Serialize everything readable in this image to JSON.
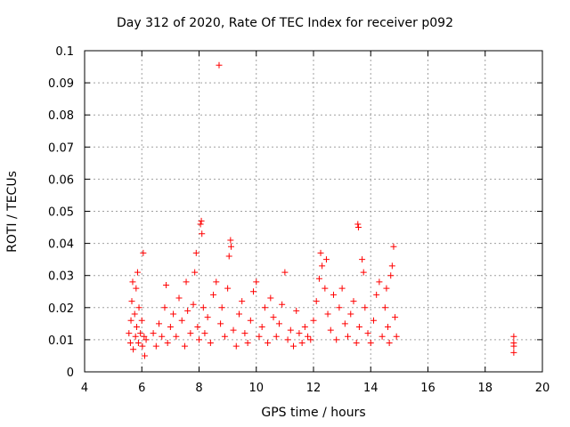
{
  "chart_data": {
    "type": "scatter",
    "title": "Day 312 of 2020, Rate Of TEC Index for receiver p092",
    "xlabel": "GPS time / hours",
    "ylabel": "ROTI / TECUs",
    "xlim": [
      4,
      20
    ],
    "ylim": [
      0,
      0.1
    ],
    "xticks": [
      "4",
      "6",
      "8",
      "10",
      "12",
      "14",
      "16",
      "18",
      "20"
    ],
    "yticks": [
      "0",
      "0.01",
      "0.02",
      "0.03",
      "0.04",
      "0.05",
      "0.06",
      "0.07",
      "0.08",
      "0.09",
      "0.1"
    ],
    "grid": true,
    "marker": "+",
    "color": "#ff0000",
    "series": [
      {
        "points": [
          [
            5.55,
            0.012
          ],
          [
            5.6,
            0.009
          ],
          [
            5.62,
            0.016
          ],
          [
            5.65,
            0.022
          ],
          [
            5.68,
            0.028
          ],
          [
            5.7,
            0.007
          ],
          [
            5.75,
            0.018
          ],
          [
            5.78,
            0.011
          ],
          [
            5.8,
            0.026
          ],
          [
            5.82,
            0.014
          ],
          [
            5.85,
            0.031
          ],
          [
            5.88,
            0.009
          ],
          [
            5.9,
            0.02
          ],
          [
            5.95,
            0.012
          ],
          [
            6.0,
            0.016
          ],
          [
            6.02,
            0.008
          ],
          [
            6.05,
            0.037
          ],
          [
            6.08,
            0.011
          ],
          [
            6.1,
            0.005
          ],
          [
            6.15,
            0.01
          ],
          [
            6.4,
            0.012
          ],
          [
            6.5,
            0.008
          ],
          [
            6.6,
            0.015
          ],
          [
            6.7,
            0.011
          ],
          [
            6.8,
            0.02
          ],
          [
            6.85,
            0.027
          ],
          [
            6.9,
            0.009
          ],
          [
            7.0,
            0.014
          ],
          [
            7.1,
            0.018
          ],
          [
            7.2,
            0.011
          ],
          [
            7.3,
            0.023
          ],
          [
            7.4,
            0.016
          ],
          [
            7.5,
            0.008
          ],
          [
            7.55,
            0.028
          ],
          [
            7.6,
            0.019
          ],
          [
            7.7,
            0.012
          ],
          [
            7.8,
            0.021
          ],
          [
            7.85,
            0.031
          ],
          [
            7.9,
            0.037
          ],
          [
            7.95,
            0.014
          ],
          [
            8.0,
            0.01
          ],
          [
            8.05,
            0.046
          ],
          [
            8.08,
            0.047
          ],
          [
            8.1,
            0.043
          ],
          [
            8.15,
            0.02
          ],
          [
            8.2,
            0.012
          ],
          [
            8.3,
            0.017
          ],
          [
            8.4,
            0.009
          ],
          [
            8.5,
            0.024
          ],
          [
            8.6,
            0.028
          ],
          [
            8.7,
            0.0955
          ],
          [
            8.75,
            0.015
          ],
          [
            8.8,
            0.02
          ],
          [
            8.9,
            0.011
          ],
          [
            9.0,
            0.026
          ],
          [
            9.05,
            0.036
          ],
          [
            9.1,
            0.041
          ],
          [
            9.12,
            0.039
          ],
          [
            9.2,
            0.013
          ],
          [
            9.3,
            0.008
          ],
          [
            9.4,
            0.018
          ],
          [
            9.5,
            0.022
          ],
          [
            9.6,
            0.012
          ],
          [
            9.7,
            0.009
          ],
          [
            9.8,
            0.016
          ],
          [
            9.9,
            0.025
          ],
          [
            10.0,
            0.028
          ],
          [
            10.1,
            0.011
          ],
          [
            10.2,
            0.014
          ],
          [
            10.3,
            0.02
          ],
          [
            10.4,
            0.009
          ],
          [
            10.5,
            0.023
          ],
          [
            10.6,
            0.017
          ],
          [
            10.7,
            0.011
          ],
          [
            10.8,
            0.015
          ],
          [
            10.9,
            0.021
          ],
          [
            11.0,
            0.031
          ],
          [
            11.1,
            0.01
          ],
          [
            11.2,
            0.013
          ],
          [
            11.3,
            0.008
          ],
          [
            11.4,
            0.019
          ],
          [
            11.5,
            0.012
          ],
          [
            11.6,
            0.009
          ],
          [
            11.7,
            0.014
          ],
          [
            11.8,
            0.011
          ],
          [
            11.9,
            0.01
          ],
          [
            12.0,
            0.016
          ],
          [
            12.1,
            0.022
          ],
          [
            12.2,
            0.029
          ],
          [
            12.25,
            0.037
          ],
          [
            12.3,
            0.033
          ],
          [
            12.4,
            0.026
          ],
          [
            12.45,
            0.035
          ],
          [
            12.5,
            0.018
          ],
          [
            12.6,
            0.013
          ],
          [
            12.7,
            0.024
          ],
          [
            12.8,
            0.01
          ],
          [
            12.9,
            0.02
          ],
          [
            13.0,
            0.026
          ],
          [
            13.1,
            0.015
          ],
          [
            13.2,
            0.011
          ],
          [
            13.3,
            0.018
          ],
          [
            13.4,
            0.022
          ],
          [
            13.5,
            0.009
          ],
          [
            13.55,
            0.046
          ],
          [
            13.57,
            0.045
          ],
          [
            13.6,
            0.014
          ],
          [
            13.7,
            0.035
          ],
          [
            13.75,
            0.031
          ],
          [
            13.8,
            0.02
          ],
          [
            13.9,
            0.012
          ],
          [
            14.0,
            0.009
          ],
          [
            14.1,
            0.016
          ],
          [
            14.2,
            0.024
          ],
          [
            14.3,
            0.028
          ],
          [
            14.4,
            0.011
          ],
          [
            14.5,
            0.02
          ],
          [
            14.55,
            0.026
          ],
          [
            14.6,
            0.014
          ],
          [
            14.65,
            0.009
          ],
          [
            14.7,
            0.03
          ],
          [
            14.75,
            0.033
          ],
          [
            14.8,
            0.039
          ],
          [
            14.85,
            0.017
          ],
          [
            14.9,
            0.011
          ],
          [
            19.0,
            0.011
          ],
          [
            19.0,
            0.009
          ],
          [
            19.0,
            0.008
          ],
          [
            19.0,
            0.006
          ]
        ]
      }
    ]
  }
}
